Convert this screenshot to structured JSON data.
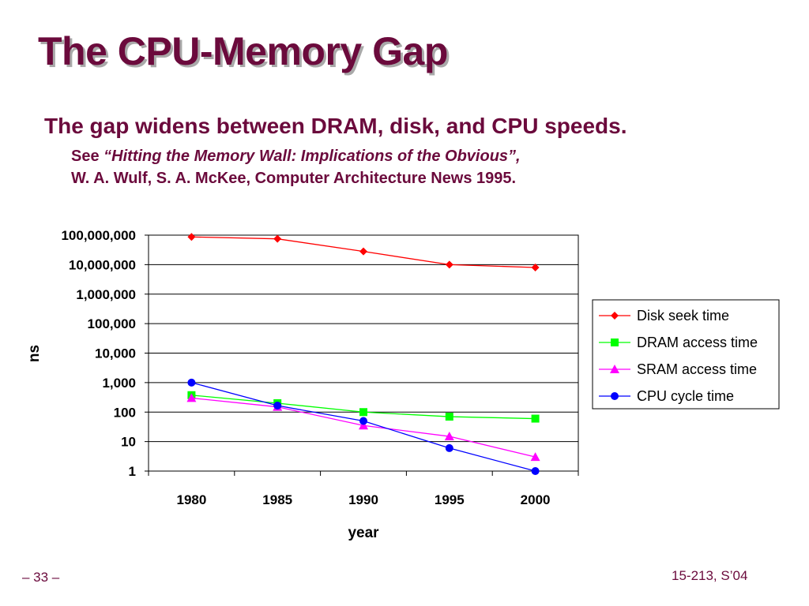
{
  "slide": {
    "title": "The CPU-Memory Gap",
    "subtitle": "The gap widens between DRAM, disk, and CPU speeds.",
    "citation_prefix": "See ",
    "citation_title": "“Hitting the Memory Wall: Implications of the Obvious”,",
    "citation_authors": "W. A. Wulf, S. A. McKee, Computer Architecture News 1995.",
    "page_number": "– 33 –",
    "course": "15-213, S’04"
  },
  "chart_data": {
    "type": "line",
    "yscale": "log",
    "title": "",
    "xlabel": "year",
    "ylabel": "ns",
    "x": [
      1980,
      1985,
      1990,
      1995,
      2000
    ],
    "x_tick_labels": [
      "1980",
      "1985",
      "1990",
      "1995",
      "2000"
    ],
    "ylim": [
      1,
      100000000
    ],
    "y_ticks": [
      1,
      10,
      100,
      1000,
      10000,
      100000,
      1000000,
      10000000,
      100000000
    ],
    "y_tick_labels": [
      "1",
      "10",
      "100",
      "1,000",
      "10,000",
      "100,000",
      "1,000,000",
      "10,000,000",
      "100,000,000"
    ],
    "grid": "horizontal",
    "legend_position": "right",
    "series": [
      {
        "name": "Disk seek time",
        "color": "#ff0000",
        "marker": "diamond",
        "values": [
          87000000,
          75000000,
          28000000,
          10000000,
          8000000
        ]
      },
      {
        "name": "DRAM access time",
        "color": "#00ff00",
        "marker": "square",
        "values": [
          375,
          200,
          100,
          70,
          60
        ]
      },
      {
        "name": "SRAM access time",
        "color": "#ff00ff",
        "marker": "triangle",
        "values": [
          300,
          150,
          35,
          15,
          3
        ]
      },
      {
        "name": "CPU cycle time",
        "color": "#0000ff",
        "marker": "circle",
        "values": [
          1000,
          166,
          50,
          6,
          1
        ]
      }
    ]
  }
}
